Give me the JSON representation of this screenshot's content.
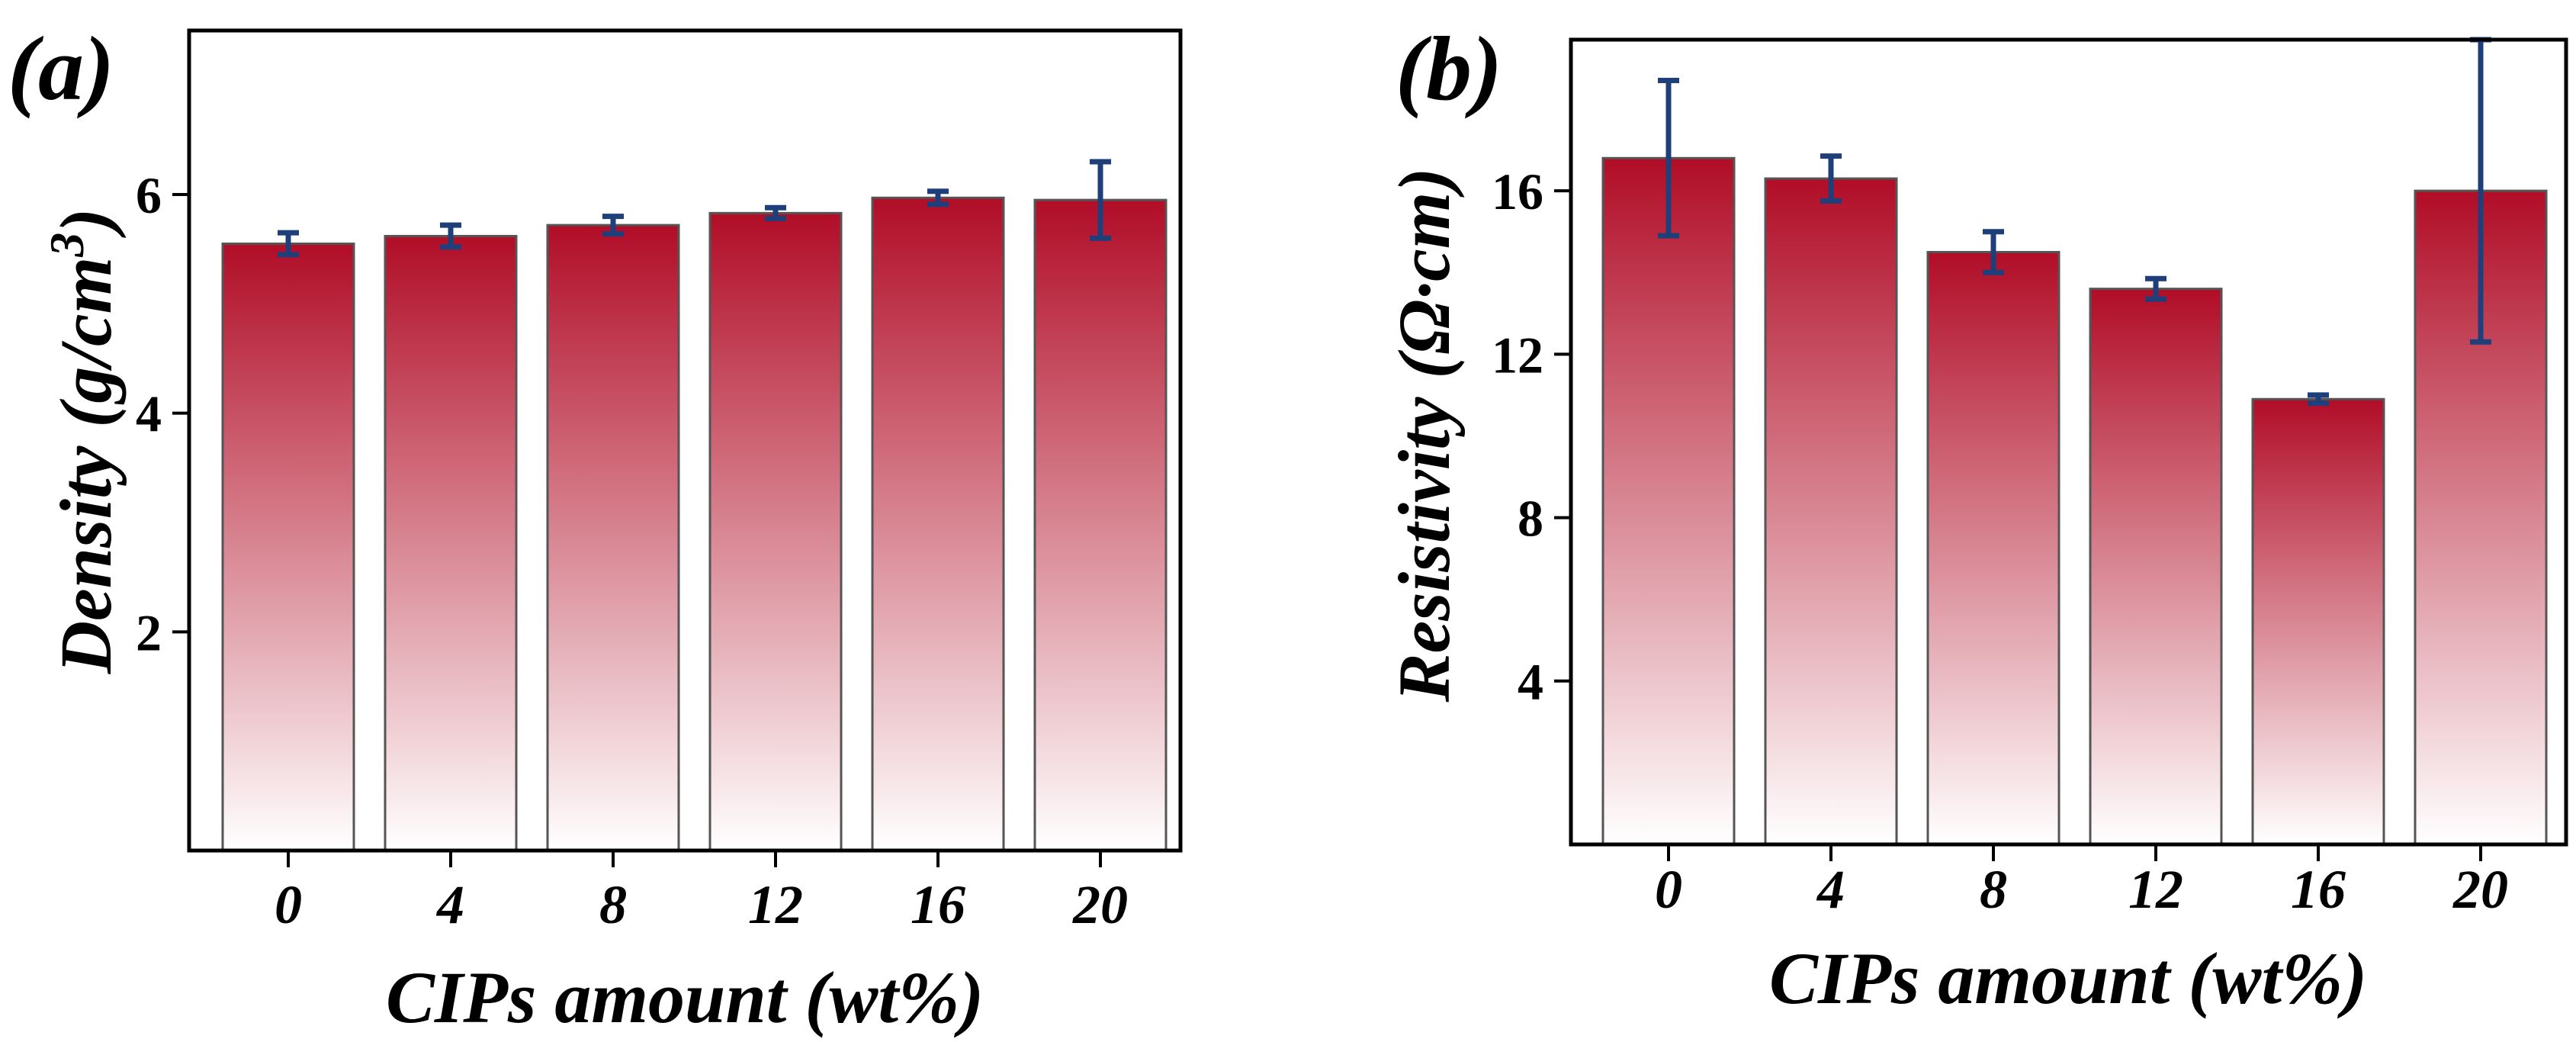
{
  "chart_data": [
    {
      "panel_label": "(a)",
      "type": "bar",
      "categories": [
        "0",
        "4",
        "8",
        "12",
        "16",
        "20"
      ],
      "values": [
        5.55,
        5.62,
        5.72,
        5.83,
        5.97,
        5.95
      ],
      "errors": [
        0.1,
        0.1,
        0.08,
        0.05,
        0.06,
        0.35
      ],
      "xlabel": "CIPs amount (wt%)",
      "ylabel": "Density (g/cm",
      "ylabel_sup": "3",
      "ylabel_close": ")",
      "ylim": [
        0,
        7.5
      ],
      "yticks": [
        2,
        4,
        6
      ],
      "ytick_labels": [
        "2",
        "4",
        "6"
      ],
      "legend": "none"
    },
    {
      "panel_label": "(b)",
      "type": "bar",
      "categories": [
        "0",
        "4",
        "8",
        "12",
        "16",
        "20"
      ],
      "values": [
        16.8,
        16.3,
        14.5,
        13.6,
        10.9,
        16.0
      ],
      "errors": [
        1.9,
        0.55,
        0.5,
        0.25,
        0.1,
        3.7
      ],
      "xlabel": "CIPs amount (wt%)",
      "ylabel": "Resistivity (Ω·cm)",
      "ylim": [
        0,
        19.7
      ],
      "yticks": [
        4,
        8,
        12,
        16
      ],
      "ytick_labels": [
        "4",
        "8",
        "12",
        "16"
      ],
      "legend": "none"
    }
  ],
  "colors": {
    "bar_top": "#b10d27",
    "bar_bottom": "#ffffff",
    "error_bar": "#1f3f7a",
    "axis": "#000000"
  }
}
